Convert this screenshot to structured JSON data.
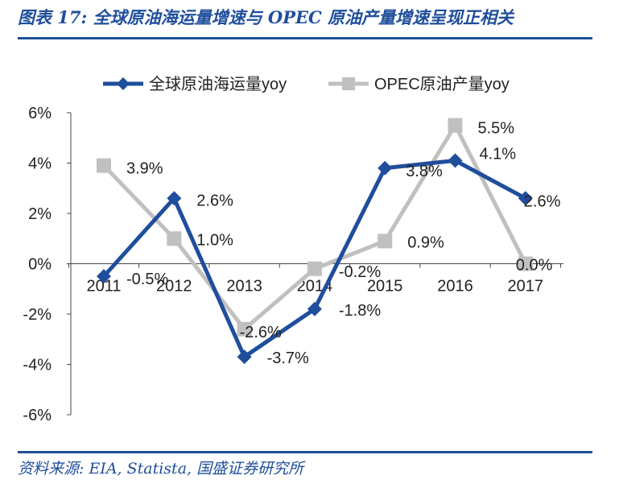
{
  "figure": {
    "title": "图表 17:  全球原油海运量增速与 OPEC 原油产量增速呈现正相关",
    "source": "资料来源: EIA, Statista, 国盛证券研究所"
  },
  "chart_data": {
    "type": "line",
    "x": [
      "2011",
      "2012",
      "2013",
      "2014",
      "2015",
      "2016",
      "2017"
    ],
    "ylim": [
      -6,
      6
    ],
    "yticks": [
      -6,
      -4,
      -2,
      0,
      2,
      4,
      6
    ],
    "ytick_labels": [
      "-6%",
      "-4%",
      "-2%",
      "0%",
      "2%",
      "4%",
      "6%"
    ],
    "grid": false,
    "legend_position": "top",
    "series": [
      {
        "name": "全球原油海运量yoy",
        "color": "#1f4e9c",
        "marker": "diamond",
        "values": [
          -0.5,
          2.6,
          -3.7,
          -1.8,
          3.8,
          4.1,
          2.6
        ],
        "labels": [
          "-0.5%",
          "2.6%",
          "-3.7%",
          "-1.8%",
          "3.8%",
          "4.1%",
          "2.6%"
        ]
      },
      {
        "name": "OPEC原油产量yoy",
        "color": "#c0c0c0",
        "marker": "square",
        "values": [
          3.9,
          1.0,
          -2.6,
          -0.2,
          0.9,
          5.5,
          0.0
        ],
        "labels": [
          "3.9%",
          "1.0%",
          "-2.6%",
          "-0.2%",
          "0.9%",
          "5.5%",
          "0.0%"
        ]
      }
    ]
  }
}
